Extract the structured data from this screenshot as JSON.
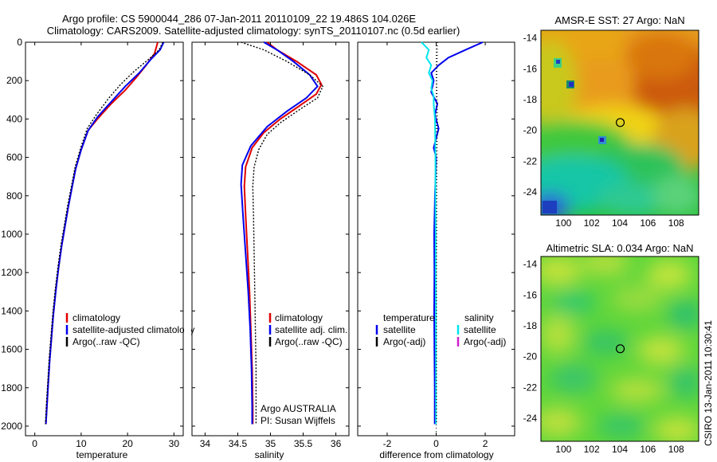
{
  "header": {
    "line1": "Argo profile: CS 5900044_286 07-Jan-2011 20110109_22 19.486S 104.026E",
    "line2": "Climatology: CARS2009. Satellite-adjusted climatology: synTS_20110107.nc (0.5d earlier)"
  },
  "footer": {
    "argo_country": "Argo AUSTRALIA",
    "pi": "PI: Susan Wijffels",
    "stamp": "CSIRO 13-Jan-2011 10:30:41"
  },
  "colors": {
    "climatology": "#e00000",
    "satellite": "#0000ee",
    "argo": "#000000",
    "satellite_salinity": "#00e5ee",
    "argo_adj_salinity": "#d020d0",
    "marker": "#000000"
  },
  "chart_data": [
    {
      "id": "temperature",
      "type": "line",
      "xlabel": "temperature",
      "ylabel": "",
      "xlim": [
        -2,
        32
      ],
      "ylim": [
        2050,
        0
      ],
      "xticks": [
        0,
        10,
        20,
        30
      ],
      "yticks": [
        0,
        200,
        400,
        600,
        800,
        1000,
        1200,
        1400,
        1600,
        1800,
        2000
      ],
      "legend": [
        "climatology",
        "satellite-adjusted climatology",
        "Argo(..raw -QC)"
      ],
      "series": [
        {
          "name": "climatology",
          "color": "#e00000",
          "dash": "",
          "points": [
            [
              26.5,
              0
            ],
            [
              25.8,
              60
            ],
            [
              24,
              120
            ],
            [
              22,
              180
            ],
            [
              19.5,
              250
            ],
            [
              16.5,
              320
            ],
            [
              13.5,
              400
            ],
            [
              11.5,
              460
            ],
            [
              10,
              560
            ],
            [
              8.8,
              660
            ],
            [
              8,
              760
            ],
            [
              7.2,
              860
            ],
            [
              6.5,
              960
            ],
            [
              5.8,
              1060
            ],
            [
              5.1,
              1180
            ],
            [
              4.5,
              1300
            ],
            [
              4,
              1420
            ],
            [
              3.6,
              1540
            ],
            [
              3.2,
              1660
            ],
            [
              2.9,
              1780
            ],
            [
              2.6,
              1900
            ],
            [
              2.4,
              1990
            ]
          ]
        },
        {
          "name": "satellite",
          "color": "#0000ee",
          "dash": "",
          "points": [
            [
              27.8,
              0
            ],
            [
              27,
              40
            ],
            [
              25,
              90
            ],
            [
              22.5,
              160
            ],
            [
              19.5,
              230
            ],
            [
              16.5,
              310
            ],
            [
              13.5,
              390
            ],
            [
              11.5,
              460
            ],
            [
              10,
              560
            ],
            [
              8.8,
              660
            ],
            [
              8,
              760
            ],
            [
              7.2,
              860
            ],
            [
              6.5,
              960
            ],
            [
              5.8,
              1060
            ],
            [
              5.1,
              1180
            ],
            [
              4.5,
              1300
            ],
            [
              4,
              1420
            ],
            [
              3.6,
              1540
            ],
            [
              3.2,
              1660
            ],
            [
              2.9,
              1780
            ],
            [
              2.6,
              1900
            ],
            [
              2.4,
              1990
            ]
          ]
        },
        {
          "name": "argo",
          "color": "#000000",
          "dash": "2 2",
          "points": [
            [
              27.6,
              0
            ],
            [
              26.8,
              40
            ],
            [
              24.5,
              90
            ],
            [
              21.5,
              150
            ],
            [
              18.5,
              220
            ],
            [
              16,
              290
            ],
            [
              13.2,
              380
            ],
            [
              11.3,
              450
            ],
            [
              9.9,
              550
            ],
            [
              8.7,
              650
            ],
            [
              7.9,
              750
            ],
            [
              7.1,
              850
            ],
            [
              6.4,
              950
            ],
            [
              5.7,
              1050
            ],
            [
              5,
              1170
            ],
            [
              4.4,
              1290
            ],
            [
              3.9,
              1410
            ],
            [
              3.5,
              1530
            ],
            [
              3.1,
              1650
            ],
            [
              2.8,
              1770
            ],
            [
              2.5,
              1890
            ],
            [
              2.3,
              1990
            ]
          ]
        }
      ]
    },
    {
      "id": "salinity",
      "type": "line",
      "xlabel": "salinity",
      "ylabel": "",
      "xlim": [
        33.8,
        36.2
      ],
      "ylim": [
        2050,
        0
      ],
      "xticks": [
        34,
        34.5,
        35,
        35.5,
        36
      ],
      "xticklabels": [
        "34",
        "34.5",
        "35",
        "35.5",
        "36"
      ],
      "yticks": [
        0,
        200,
        400,
        600,
        800,
        1000,
        1200,
        1400,
        1600,
        1800,
        2000
      ],
      "legend": [
        "climatology",
        "satellite adj. clim.",
        "Argo(..raw -QC)"
      ],
      "series": [
        {
          "name": "climatology",
          "color": "#e00000",
          "dash": "",
          "points": [
            [
              34.95,
              0
            ],
            [
              35.1,
              40
            ],
            [
              35.4,
              100
            ],
            [
              35.7,
              170
            ],
            [
              35.78,
              220
            ],
            [
              35.7,
              270
            ],
            [
              35.45,
              330
            ],
            [
              35.15,
              400
            ],
            [
              34.9,
              470
            ],
            [
              34.72,
              550
            ],
            [
              34.62,
              650
            ],
            [
              34.6,
              750
            ],
            [
              34.62,
              900
            ],
            [
              34.65,
              1100
            ],
            [
              34.68,
              1300
            ],
            [
              34.7,
              1500
            ],
            [
              34.72,
              1700
            ],
            [
              34.73,
              1900
            ],
            [
              34.73,
              1990
            ]
          ]
        },
        {
          "name": "satellite",
          "color": "#0000ee",
          "dash": "",
          "points": [
            [
              34.9,
              0
            ],
            [
              35.1,
              40
            ],
            [
              35.35,
              100
            ],
            [
              35.6,
              170
            ],
            [
              35.72,
              230
            ],
            [
              35.55,
              290
            ],
            [
              35.25,
              360
            ],
            [
              34.95,
              440
            ],
            [
              34.7,
              540
            ],
            [
              34.57,
              640
            ],
            [
              34.55,
              740
            ],
            [
              34.58,
              900
            ],
            [
              34.62,
              1100
            ],
            [
              34.66,
              1300
            ],
            [
              34.69,
              1500
            ],
            [
              34.71,
              1700
            ],
            [
              34.72,
              1900
            ],
            [
              34.72,
              1990
            ]
          ]
        },
        {
          "name": "argo",
          "color": "#000000",
          "dash": "2 2",
          "points": [
            [
              34.55,
              0
            ],
            [
              34.9,
              40
            ],
            [
              35.25,
              100
            ],
            [
              35.6,
              170
            ],
            [
              35.8,
              230
            ],
            [
              35.72,
              290
            ],
            [
              35.45,
              350
            ],
            [
              35.15,
              420
            ],
            [
              34.95,
              480
            ],
            [
              34.82,
              560
            ],
            [
              34.75,
              650
            ],
            [
              34.73,
              750
            ],
            [
              34.74,
              900
            ],
            [
              34.75,
              1100
            ],
            [
              34.76,
              1300
            ],
            [
              34.77,
              1500
            ],
            [
              34.78,
              1700
            ],
            [
              34.78,
              1900
            ],
            [
              34.78,
              1990
            ]
          ]
        }
      ]
    },
    {
      "id": "difference",
      "type": "line",
      "xlabel": "difference from climatology",
      "ylabel": "",
      "xlim": [
        -3.2,
        3.2
      ],
      "ylim": [
        2050,
        0
      ],
      "xticks": [
        -2,
        0,
        2
      ],
      "yticks": [
        0,
        200,
        400,
        600,
        800,
        1000,
        1200,
        1400,
        1600,
        1800,
        2000
      ],
      "legend_left_header": "temperature",
      "legend_right_header": "salinity",
      "legend_left": [
        "satellite",
        "Argo(-adj)"
      ],
      "legend_right": [
        "satellite",
        "Argo(-adj)"
      ],
      "series": [
        {
          "name": "temperature satellite",
          "color": "#0000ee",
          "dash": "",
          "points": [
            [
              1.9,
              0
            ],
            [
              1.2,
              40
            ],
            [
              0.5,
              80
            ],
            [
              0.1,
              120
            ],
            [
              -0.2,
              160
            ],
            [
              -0.1,
              200
            ],
            [
              -0.2,
              260
            ],
            [
              0.05,
              320
            ],
            [
              -0.05,
              380
            ],
            [
              0.1,
              450
            ],
            [
              0.0,
              500
            ],
            [
              -0.1,
              550
            ],
            [
              0,
              600
            ],
            [
              -0.05,
              800
            ],
            [
              -0.08,
              1000
            ],
            [
              -0.07,
              1200
            ],
            [
              -0.08,
              1400
            ],
            [
              -0.07,
              1600
            ],
            [
              -0.06,
              1800
            ],
            [
              -0.06,
              1990
            ]
          ]
        },
        {
          "name": "salinity satellite",
          "color": "#00e5ee",
          "dash": "",
          "points": [
            [
              -0.6,
              0
            ],
            [
              -0.3,
              40
            ],
            [
              -0.4,
              80
            ],
            [
              -0.2,
              120
            ],
            [
              -0.3,
              160
            ],
            [
              -0.15,
              200
            ],
            [
              -0.2,
              240
            ],
            [
              -0.1,
              280
            ],
            [
              -0.1,
              320
            ],
            [
              -0.05,
              400
            ],
            [
              -0.04,
              500
            ],
            [
              -0.03,
              600
            ],
            [
              -0.03,
              800
            ],
            [
              -0.02,
              1000
            ],
            [
              -0.02,
              1200
            ],
            [
              -0.01,
              1400
            ],
            [
              -0.01,
              1600
            ],
            [
              -0.01,
              1800
            ],
            [
              -0.01,
              1990
            ]
          ]
        },
        {
          "name": "temperature argo",
          "color": "#000000",
          "dash": "1 3",
          "points": [
            [
              0.05,
              0
            ],
            [
              0.02,
              200
            ],
            [
              0.05,
              400
            ],
            [
              0.03,
              600
            ],
            [
              0.02,
              800
            ],
            [
              0.02,
              1000
            ],
            [
              0.01,
              1200
            ],
            [
              0.01,
              1400
            ],
            [
              0.01,
              1600
            ],
            [
              0.01,
              1800
            ],
            [
              0.01,
              1990
            ]
          ]
        }
      ]
    },
    {
      "id": "sst_map",
      "type": "heatmap",
      "title": "AMSR-E SST: 27 Argo: NaN",
      "xlim": [
        98.4,
        109.6
      ],
      "ylim": [
        -25.5,
        -13.5
      ],
      "xticks": [
        100,
        102,
        104,
        106,
        108
      ],
      "yticks": [
        -14,
        -16,
        -18,
        -20,
        -22,
        -24
      ],
      "marker": {
        "lon": 104.03,
        "lat": -19.49
      }
    },
    {
      "id": "sla_map",
      "type": "heatmap",
      "title": "Altimetric SLA: 0.034 Argo: NaN",
      "xlim": [
        98.4,
        109.6
      ],
      "ylim": [
        -25.5,
        -13.5
      ],
      "xticks": [
        100,
        102,
        104,
        106,
        108
      ],
      "yticks": [
        -14,
        -16,
        -18,
        -20,
        -22,
        -24
      ],
      "marker": {
        "lon": 104.03,
        "lat": -19.49
      }
    }
  ]
}
